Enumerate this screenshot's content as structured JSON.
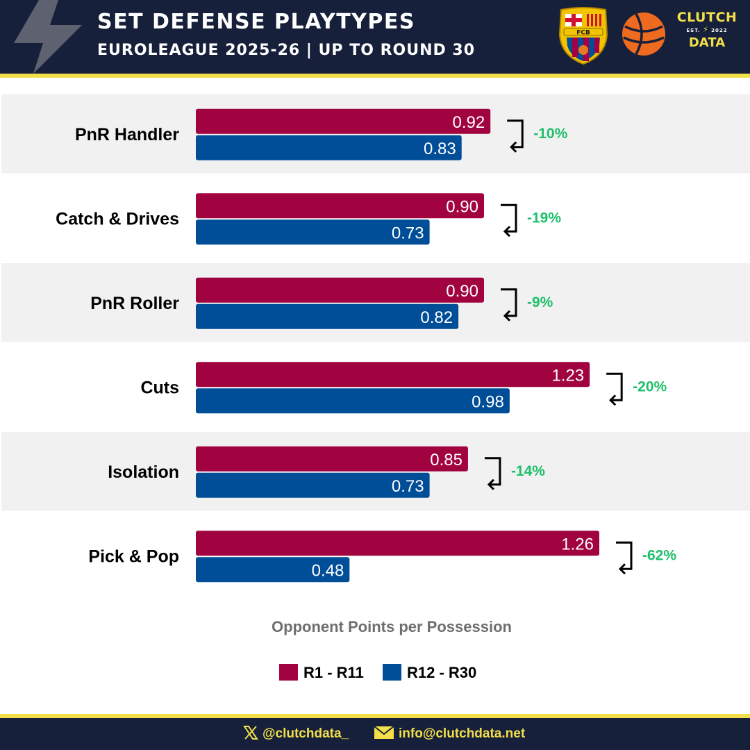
{
  "header": {
    "title": "SET DEFENSE PLAYTYPES",
    "subtitle": "EUROLEAGUE 2025-26 | UP TO ROUND 30",
    "team_logo_text": "FCB",
    "brand_line1": "CLUTCH",
    "brand_est": "EST.",
    "brand_year": "2022",
    "brand_line2": "DATA"
  },
  "chart_data": {
    "type": "bar",
    "orientation": "horizontal",
    "title": "Opponent Points per Possession",
    "xlabel": "Opponent Points per Possession",
    "categories": [
      "PnR Handler",
      "Catch & Drives",
      "PnR Roller",
      "Cuts",
      "Isolation",
      "Pick & Pop"
    ],
    "series": [
      {
        "name": "R1 - R11",
        "color": "#a0033f",
        "values": [
          0.92,
          0.9,
          0.9,
          1.23,
          0.85,
          1.26
        ],
        "labels": [
          "0.92",
          "0.90",
          "0.90",
          "1.23",
          "0.85",
          "1.26"
        ]
      },
      {
        "name": "R12 - R30",
        "color": "#004d98",
        "values": [
          0.83,
          0.73,
          0.82,
          0.98,
          0.73,
          0.48
        ],
        "labels": [
          "0.83",
          "0.73",
          "0.82",
          "0.98",
          "0.73",
          "0.48"
        ]
      }
    ],
    "changes": [
      "-10%",
      "-19%",
      "-9%",
      "-20%",
      "-14%",
      "-62%"
    ],
    "change_color": "#1dbf6a",
    "xlim": [
      0,
      1.26
    ],
    "legend_position": "bottom-center"
  },
  "footer": {
    "twitter": "@clutchdata_",
    "email": "info@clutchdata.net"
  }
}
